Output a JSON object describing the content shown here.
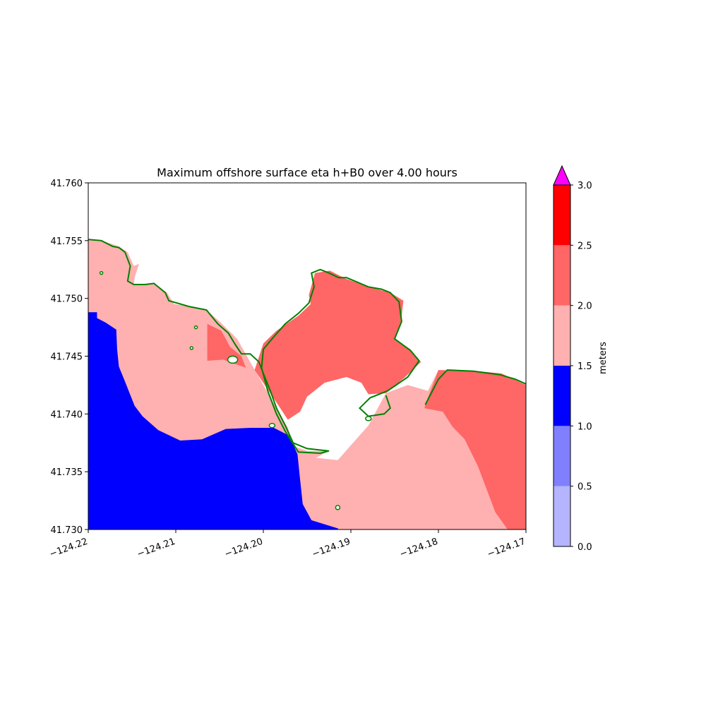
{
  "chart_data": {
    "type": "heatmap",
    "title": "Maximum offshore surface eta h+B0 over 4.00 hours",
    "xlim": [
      -124.22,
      -124.17
    ],
    "ylim": [
      41.73,
      41.76
    ],
    "x_ticks": [
      "−124.22",
      "−124.21",
      "−124.20",
      "−124.19",
      "−124.18",
      "−124.17"
    ],
    "x_tick_values": [
      -124.22,
      -124.21,
      -124.2,
      -124.19,
      -124.18,
      -124.17
    ],
    "y_ticks": [
      "41.730",
      "41.735",
      "41.740",
      "41.745",
      "41.750",
      "41.755",
      "41.760"
    ],
    "y_tick_values": [
      41.73,
      41.735,
      41.74,
      41.745,
      41.75,
      41.755,
      41.76
    ],
    "colorbar": {
      "label": "meters",
      "extend": "max",
      "over_color": "#ff00ff",
      "ticks": [
        "0.0",
        "0.5",
        "1.0",
        "1.5",
        "2.0",
        "2.5",
        "3.0"
      ],
      "levels": [
        {
          "range": [
            0.0,
            0.5
          ],
          "color": "#b4b4ff"
        },
        {
          "range": [
            0.5,
            1.0
          ],
          "color": "#8080ff"
        },
        {
          "range": [
            1.0,
            1.5
          ],
          "color": "#0000ff"
        },
        {
          "range": [
            1.5,
            2.0
          ],
          "color": "#ffb0b0"
        },
        {
          "range": [
            2.0,
            2.5
          ],
          "color": "#ff6666"
        },
        {
          "range": [
            2.5,
            3.0
          ],
          "color": "#ff0000"
        }
      ]
    },
    "regions": [
      {
        "name": "offshore-blue",
        "level": "1.0-1.5",
        "color": "#0000ff",
        "polygon": [
          [
            -124.22,
            41.7488
          ],
          [
            -124.219,
            41.7488
          ],
          [
            -124.219,
            41.7483
          ],
          [
            -124.218,
            41.7479
          ],
          [
            -124.2168,
            41.7473
          ],
          [
            -124.2167,
            41.7456
          ],
          [
            -124.2165,
            41.7441
          ],
          [
            -124.2158,
            41.7428
          ],
          [
            -124.2147,
            41.7407
          ],
          [
            -124.2138,
            41.7398
          ],
          [
            -124.212,
            41.7386
          ],
          [
            -124.2095,
            41.7377
          ],
          [
            -124.207,
            41.7378
          ],
          [
            -124.2043,
            41.7387
          ],
          [
            -124.2015,
            41.7388
          ],
          [
            -124.1988,
            41.7388
          ],
          [
            -124.197,
            41.7381
          ],
          [
            -124.1961,
            41.7365
          ],
          [
            -124.1958,
            41.7343
          ],
          [
            -124.1955,
            41.7322
          ],
          [
            -124.1945,
            41.7308
          ],
          [
            -124.1915,
            41.7301
          ],
          [
            -124.1914,
            41.73
          ],
          [
            -124.22,
            41.73
          ]
        ]
      },
      {
        "name": "bay-left-dark",
        "level": "2.0-2.5",
        "color": "#ff6666",
        "polygon": [
          [
            -124.2064,
            41.7478
          ],
          [
            -124.2048,
            41.7472
          ],
          [
            -124.2038,
            41.7458
          ],
          [
            -124.2025,
            41.745
          ],
          [
            -124.202,
            41.744
          ],
          [
            -124.2046,
            41.7447
          ],
          [
            -124.2064,
            41.7446
          ]
        ]
      },
      {
        "name": "bay-right-dark",
        "level": "2.0-2.5",
        "color": "#ff6666",
        "polygon": [
          [
            -124.2,
            41.7461
          ],
          [
            -124.1985,
            41.7472
          ],
          [
            -124.196,
            41.7485
          ],
          [
            -124.1946,
            41.7495
          ],
          [
            -124.1948,
            41.7503
          ],
          [
            -124.1941,
            41.7522
          ],
          [
            -124.1924,
            41.7524
          ],
          [
            -124.1906,
            41.7517
          ],
          [
            -124.188,
            41.751
          ],
          [
            -124.1855,
            41.7505
          ],
          [
            -124.184,
            41.7498
          ],
          [
            -124.1843,
            41.7478
          ],
          [
            -124.185,
            41.7465
          ],
          [
            -124.1832,
            41.7456
          ],
          [
            -124.182,
            41.7445
          ],
          [
            -124.1838,
            41.7432
          ],
          [
            -124.186,
            41.7418
          ],
          [
            -124.188,
            41.7417
          ],
          [
            -124.1888,
            41.7427
          ],
          [
            -124.1905,
            41.7432
          ],
          [
            -124.193,
            41.7427
          ],
          [
            -124.195,
            41.7415
          ],
          [
            -124.1958,
            41.7402
          ],
          [
            -124.1972,
            41.7395
          ],
          [
            -124.1985,
            41.741
          ],
          [
            -124.201,
            41.7438
          ]
        ]
      },
      {
        "name": "offshore-right-dark",
        "level": "2.0-2.5",
        "color": "#ff6666",
        "polygon": [
          [
            -124.18,
            41.7438
          ],
          [
            -124.1755,
            41.7437
          ],
          [
            -124.1728,
            41.7435
          ],
          [
            -124.17,
            41.7425
          ],
          [
            -124.17,
            41.73
          ],
          [
            -124.1721,
            41.73
          ],
          [
            -124.1735,
            41.7315
          ],
          [
            -124.1755,
            41.7355
          ],
          [
            -124.177,
            41.7378
          ],
          [
            -124.1784,
            41.7389
          ],
          [
            -124.1795,
            41.7402
          ],
          [
            -124.1816,
            41.7405
          ],
          [
            -124.1815,
            41.7408
          ]
        ]
      }
    ],
    "contour_color": "#008000"
  }
}
